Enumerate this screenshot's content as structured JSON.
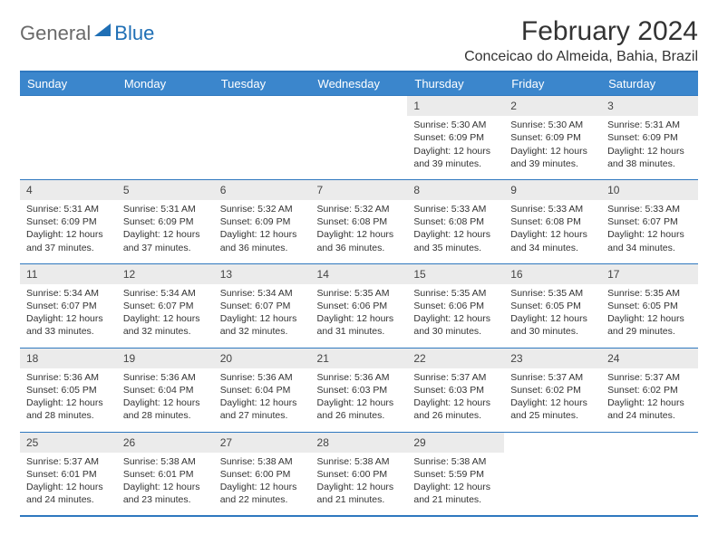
{
  "logo": {
    "text1": "General",
    "text2": "Blue"
  },
  "title": "February 2024",
  "location": "Conceicao do Almeida, Bahia, Brazil",
  "colors": {
    "header_bg": "#3b86cc",
    "border": "#2f78bf",
    "daynum_bg": "#ebebeb",
    "text": "#333333",
    "logo_gray": "#6a6a6a",
    "logo_blue": "#1f6fb5"
  },
  "day_headers": [
    "Sunday",
    "Monday",
    "Tuesday",
    "Wednesday",
    "Thursday",
    "Friday",
    "Saturday"
  ],
  "weeks": [
    [
      {
        "day": "",
        "sunrise": "",
        "sunset": "",
        "daylight": ""
      },
      {
        "day": "",
        "sunrise": "",
        "sunset": "",
        "daylight": ""
      },
      {
        "day": "",
        "sunrise": "",
        "sunset": "",
        "daylight": ""
      },
      {
        "day": "",
        "sunrise": "",
        "sunset": "",
        "daylight": ""
      },
      {
        "day": "1",
        "sunrise": "Sunrise: 5:30 AM",
        "sunset": "Sunset: 6:09 PM",
        "daylight": "Daylight: 12 hours and 39 minutes."
      },
      {
        "day": "2",
        "sunrise": "Sunrise: 5:30 AM",
        "sunset": "Sunset: 6:09 PM",
        "daylight": "Daylight: 12 hours and 39 minutes."
      },
      {
        "day": "3",
        "sunrise": "Sunrise: 5:31 AM",
        "sunset": "Sunset: 6:09 PM",
        "daylight": "Daylight: 12 hours and 38 minutes."
      }
    ],
    [
      {
        "day": "4",
        "sunrise": "Sunrise: 5:31 AM",
        "sunset": "Sunset: 6:09 PM",
        "daylight": "Daylight: 12 hours and 37 minutes."
      },
      {
        "day": "5",
        "sunrise": "Sunrise: 5:31 AM",
        "sunset": "Sunset: 6:09 PM",
        "daylight": "Daylight: 12 hours and 37 minutes."
      },
      {
        "day": "6",
        "sunrise": "Sunrise: 5:32 AM",
        "sunset": "Sunset: 6:09 PM",
        "daylight": "Daylight: 12 hours and 36 minutes."
      },
      {
        "day": "7",
        "sunrise": "Sunrise: 5:32 AM",
        "sunset": "Sunset: 6:08 PM",
        "daylight": "Daylight: 12 hours and 36 minutes."
      },
      {
        "day": "8",
        "sunrise": "Sunrise: 5:33 AM",
        "sunset": "Sunset: 6:08 PM",
        "daylight": "Daylight: 12 hours and 35 minutes."
      },
      {
        "day": "9",
        "sunrise": "Sunrise: 5:33 AM",
        "sunset": "Sunset: 6:08 PM",
        "daylight": "Daylight: 12 hours and 34 minutes."
      },
      {
        "day": "10",
        "sunrise": "Sunrise: 5:33 AM",
        "sunset": "Sunset: 6:07 PM",
        "daylight": "Daylight: 12 hours and 34 minutes."
      }
    ],
    [
      {
        "day": "11",
        "sunrise": "Sunrise: 5:34 AM",
        "sunset": "Sunset: 6:07 PM",
        "daylight": "Daylight: 12 hours and 33 minutes."
      },
      {
        "day": "12",
        "sunrise": "Sunrise: 5:34 AM",
        "sunset": "Sunset: 6:07 PM",
        "daylight": "Daylight: 12 hours and 32 minutes."
      },
      {
        "day": "13",
        "sunrise": "Sunrise: 5:34 AM",
        "sunset": "Sunset: 6:07 PM",
        "daylight": "Daylight: 12 hours and 32 minutes."
      },
      {
        "day": "14",
        "sunrise": "Sunrise: 5:35 AM",
        "sunset": "Sunset: 6:06 PM",
        "daylight": "Daylight: 12 hours and 31 minutes."
      },
      {
        "day": "15",
        "sunrise": "Sunrise: 5:35 AM",
        "sunset": "Sunset: 6:06 PM",
        "daylight": "Daylight: 12 hours and 30 minutes."
      },
      {
        "day": "16",
        "sunrise": "Sunrise: 5:35 AM",
        "sunset": "Sunset: 6:05 PM",
        "daylight": "Daylight: 12 hours and 30 minutes."
      },
      {
        "day": "17",
        "sunrise": "Sunrise: 5:35 AM",
        "sunset": "Sunset: 6:05 PM",
        "daylight": "Daylight: 12 hours and 29 minutes."
      }
    ],
    [
      {
        "day": "18",
        "sunrise": "Sunrise: 5:36 AM",
        "sunset": "Sunset: 6:05 PM",
        "daylight": "Daylight: 12 hours and 28 minutes."
      },
      {
        "day": "19",
        "sunrise": "Sunrise: 5:36 AM",
        "sunset": "Sunset: 6:04 PM",
        "daylight": "Daylight: 12 hours and 28 minutes."
      },
      {
        "day": "20",
        "sunrise": "Sunrise: 5:36 AM",
        "sunset": "Sunset: 6:04 PM",
        "daylight": "Daylight: 12 hours and 27 minutes."
      },
      {
        "day": "21",
        "sunrise": "Sunrise: 5:36 AM",
        "sunset": "Sunset: 6:03 PM",
        "daylight": "Daylight: 12 hours and 26 minutes."
      },
      {
        "day": "22",
        "sunrise": "Sunrise: 5:37 AM",
        "sunset": "Sunset: 6:03 PM",
        "daylight": "Daylight: 12 hours and 26 minutes."
      },
      {
        "day": "23",
        "sunrise": "Sunrise: 5:37 AM",
        "sunset": "Sunset: 6:02 PM",
        "daylight": "Daylight: 12 hours and 25 minutes."
      },
      {
        "day": "24",
        "sunrise": "Sunrise: 5:37 AM",
        "sunset": "Sunset: 6:02 PM",
        "daylight": "Daylight: 12 hours and 24 minutes."
      }
    ],
    [
      {
        "day": "25",
        "sunrise": "Sunrise: 5:37 AM",
        "sunset": "Sunset: 6:01 PM",
        "daylight": "Daylight: 12 hours and 24 minutes."
      },
      {
        "day": "26",
        "sunrise": "Sunrise: 5:38 AM",
        "sunset": "Sunset: 6:01 PM",
        "daylight": "Daylight: 12 hours and 23 minutes."
      },
      {
        "day": "27",
        "sunrise": "Sunrise: 5:38 AM",
        "sunset": "Sunset: 6:00 PM",
        "daylight": "Daylight: 12 hours and 22 minutes."
      },
      {
        "day": "28",
        "sunrise": "Sunrise: 5:38 AM",
        "sunset": "Sunset: 6:00 PM",
        "daylight": "Daylight: 12 hours and 21 minutes."
      },
      {
        "day": "29",
        "sunrise": "Sunrise: 5:38 AM",
        "sunset": "Sunset: 5:59 PM",
        "daylight": "Daylight: 12 hours and 21 minutes."
      },
      {
        "day": "",
        "sunrise": "",
        "sunset": "",
        "daylight": ""
      },
      {
        "day": "",
        "sunrise": "",
        "sunset": "",
        "daylight": ""
      }
    ]
  ]
}
